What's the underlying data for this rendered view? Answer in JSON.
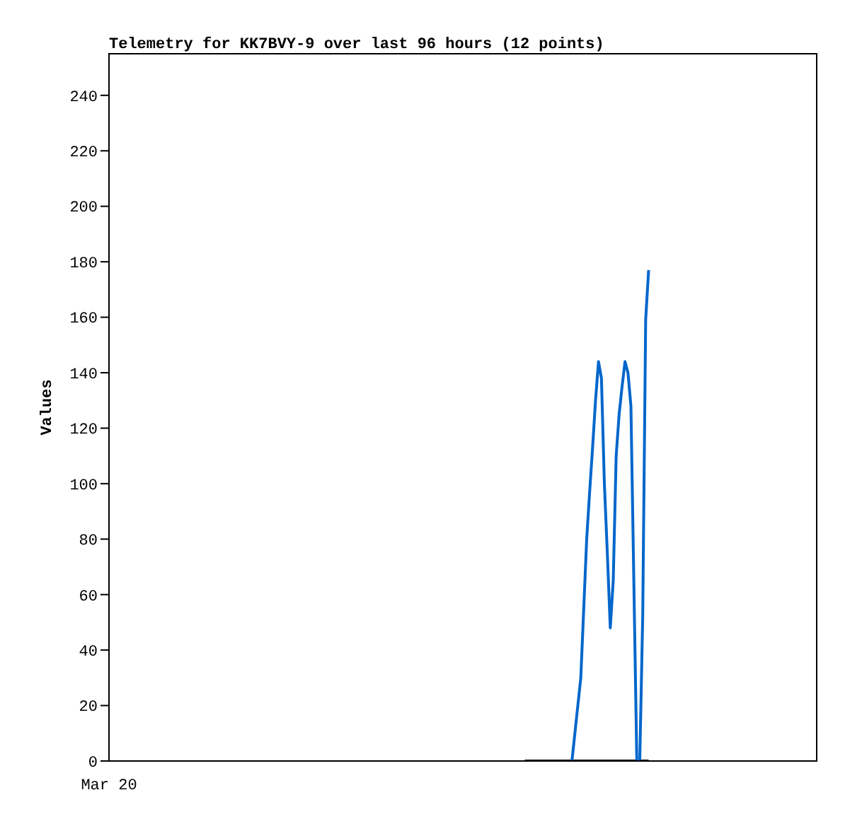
{
  "chart_data": {
    "type": "line",
    "title": "Telemetry for KK7BVY-9 over last 96 hours (12 points)",
    "ylabel": "Values",
    "annotations": [
      "Mar 20"
    ],
    "ylim": [
      0,
      255
    ],
    "yticks": [
      0,
      20,
      40,
      60,
      80,
      100,
      120,
      140,
      160,
      180,
      200,
      220,
      240
    ],
    "marker": "none",
    "line_style": "solid",
    "categories": [
      null,
      null,
      null,
      null,
      null,
      null,
      null,
      null,
      null,
      null,
      null,
      null,
      null,
      null,
      null,
      null,
      null,
      null,
      null,
      null,
      null,
      null,
      null,
      null,
      null,
      null,
      null,
      null,
      null,
      null,
      null,
      null,
      null,
      null,
      null,
      null,
      null,
      null,
      null,
      null,
      null,
      null,
      null,
      null,
      null,
      null,
      null,
      null,
      null,
      null,
      null,
      null,
      null,
      null,
      null,
      null,
      null,
      null,
      null,
      null,
      null,
      null,
      null,
      null,
      null,
      null,
      null,
      null,
      null,
      null,
      null,
      null,
      null,
      null,
      null,
      null,
      null,
      null,
      null,
      null,
      null,
      null,
      null,
      null,
      null,
      null,
      null,
      null,
      null,
      null,
      null,
      null,
      null,
      null,
      null,
      null,
      null,
      null,
      null,
      null,
      null,
      null,
      null,
      null,
      null,
      null,
      null,
      null,
      null,
      null,
      null,
      null,
      null,
      null,
      null,
      null,
      null,
      null,
      null,
      null,
      null,
      null,
      null,
      null,
      null,
      null,
      null,
      null,
      null,
      null,
      null,
      null,
      null,
      null,
      null,
      null,
      null,
      null,
      null,
      null,
      null,
      null,
      null,
      null,
      null,
      null,
      null,
      null,
      null,
      null,
      null,
      null,
      null,
      null,
      null,
      null,
      null,
      null,
      null,
      null,
      null,
      null,
      null,
      null,
      null,
      null,
      null,
      null,
      null,
      null,
      null,
      null,
      null,
      null,
      null,
      null,
      null,
      null,
      null,
      null,
      null,
      null,
      null,
      null,
      null,
      null,
      null,
      null,
      null,
      null,
      null,
      null,
      null,
      null,
      null,
      null,
      null,
      null,
      null,
      null,
      null,
      null,
      null,
      null,
      null,
      null,
      null,
      null,
      null,
      null,
      null,
      null,
      null,
      null,
      null,
      null,
      null,
      null,
      null,
      null,
      null,
      null,
      null,
      null,
      null,
      null,
      null,
      null,
      null,
      null,
      null,
      null,
      null,
      null,
      null,
      null,
      null,
      null,
      null,
      null,
      null
    ],
    "series": [
      {
        "color": "#000000",
        "values": [
          null,
          null,
          null,
          null,
          null,
          null,
          null,
          null,
          null,
          null,
          null,
          null,
          null,
          null,
          null,
          null,
          null,
          null,
          null,
          null,
          null,
          null,
          null,
          null,
          null,
          null,
          null,
          null,
          null,
          null,
          null,
          null,
          null,
          null,
          null,
          null,
          null,
          null,
          null,
          null,
          null,
          null,
          null,
          null,
          null,
          null,
          null,
          null,
          null,
          null,
          null,
          null,
          null,
          null,
          null,
          null,
          null,
          null,
          null,
          null,
          null,
          null,
          null,
          null,
          null,
          null,
          null,
          null,
          null,
          null,
          null,
          null,
          null,
          null,
          null,
          null,
          null,
          null,
          null,
          null,
          null,
          null,
          null,
          null,
          null,
          null,
          null,
          null,
          null,
          null,
          null,
          null,
          null,
          null,
          null,
          null,
          null,
          null,
          null,
          null,
          null,
          null,
          null,
          null,
          null,
          null,
          null,
          null,
          null,
          null,
          null,
          null,
          null,
          null,
          null,
          null,
          null,
          null,
          null,
          null,
          null,
          null,
          null,
          null,
          null,
          null,
          null,
          null,
          null,
          null,
          null,
          null,
          null,
          null,
          null,
          null,
          null,
          null,
          null,
          null,
          null,
          0,
          0,
          0,
          0,
          0,
          0,
          0,
          0,
          0,
          0,
          0,
          0,
          0,
          0,
          0,
          0,
          0,
          0,
          0,
          0,
          0,
          0,
          0,
          0,
          0,
          0,
          0,
          0,
          0,
          0,
          0,
          0,
          0,
          0,
          0,
          0,
          0,
          0,
          0,
          0,
          0,
          0,
          0,
          null,
          null,
          null,
          null,
          null,
          null,
          null,
          null,
          null,
          null,
          null,
          null,
          null,
          null,
          null,
          null,
          null,
          null,
          null,
          null,
          null,
          null,
          null,
          null,
          null,
          null,
          null,
          null,
          null,
          null,
          null,
          null,
          null,
          null,
          null,
          null,
          null,
          null,
          null,
          null,
          null,
          null,
          null,
          null,
          null,
          null,
          null,
          null,
          null,
          null,
          null,
          null,
          null,
          null,
          null,
          null,
          null
        ]
      },
      {
        "color": "#0066cc",
        "values": [
          null,
          null,
          null,
          null,
          null,
          null,
          null,
          null,
          null,
          null,
          null,
          null,
          null,
          null,
          null,
          null,
          null,
          null,
          null,
          null,
          null,
          null,
          null,
          null,
          null,
          null,
          null,
          null,
          null,
          null,
          null,
          null,
          null,
          null,
          null,
          null,
          null,
          null,
          null,
          null,
          null,
          null,
          null,
          null,
          null,
          null,
          null,
          null,
          null,
          null,
          null,
          null,
          null,
          null,
          null,
          null,
          null,
          null,
          null,
          null,
          null,
          null,
          null,
          null,
          null,
          null,
          null,
          null,
          null,
          null,
          null,
          null,
          null,
          null,
          null,
          null,
          null,
          null,
          null,
          null,
          null,
          null,
          null,
          null,
          null,
          null,
          null,
          null,
          null,
          null,
          null,
          null,
          null,
          null,
          null,
          null,
          null,
          null,
          null,
          null,
          null,
          null,
          null,
          null,
          null,
          null,
          null,
          null,
          null,
          null,
          null,
          null,
          null,
          null,
          null,
          null,
          null,
          null,
          null,
          null,
          null,
          null,
          null,
          null,
          null,
          null,
          null,
          null,
          null,
          null,
          null,
          null,
          null,
          null,
          null,
          null,
          null,
          null,
          null,
          null,
          null,
          null,
          null,
          null,
          null,
          null,
          null,
          null,
          null,
          null,
          null,
          null,
          null,
          null,
          null,
          null,
          null,
          0,
          10,
          20,
          30,
          55,
          80,
          97,
          113,
          130,
          144,
          138,
          100,
          75,
          48,
          65,
          110,
          125,
          135,
          144,
          140,
          128,
          64,
          0,
          0,
          52,
          159,
          177,
          null,
          null,
          null,
          null,
          null,
          null,
          null,
          null,
          null,
          null,
          null,
          null,
          null,
          null,
          null,
          null,
          null,
          null,
          null,
          null,
          null,
          null,
          null,
          null,
          null,
          null,
          null,
          null,
          null,
          null,
          null,
          null,
          null,
          null,
          null,
          null,
          null,
          null,
          null,
          null,
          null,
          null,
          null,
          null,
          null,
          null,
          null,
          null,
          null,
          null,
          null,
          null,
          null,
          null,
          null,
          null,
          null
        ]
      }
    ]
  }
}
